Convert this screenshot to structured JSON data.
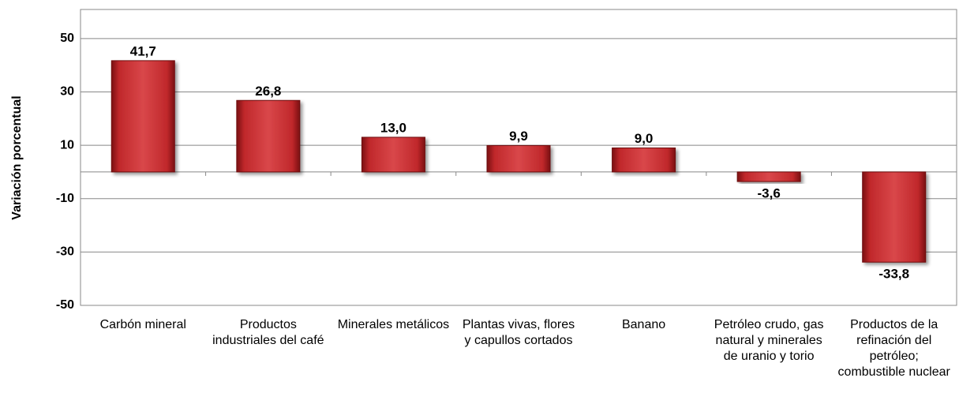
{
  "chart_data": {
    "type": "bar",
    "y_label": "Variación porcentual",
    "categories": [
      "Carbón mineral",
      "Productos industriales del café",
      "Minerales metálicos",
      "Plantas vivas, flores y capullos cortados",
      "Banano",
      "Petróleo crudo, gas natural y minerales de uranio y torio",
      "Productos de la refinación del petróleo; combustible nuclear"
    ],
    "values": [
      41.7,
      26.8,
      13.0,
      9.9,
      9.0,
      -3.6,
      -33.8
    ],
    "value_labels": [
      "41,7",
      "26,8",
      "13,0",
      "9,9",
      "9,0",
      "-3,6",
      "-33,8"
    ],
    "color": "#c0282b",
    "ylim": [
      -50,
      60
    ],
    "yticks": [
      -50,
      -30,
      -10,
      10,
      30,
      50
    ],
    "grid": true
  }
}
